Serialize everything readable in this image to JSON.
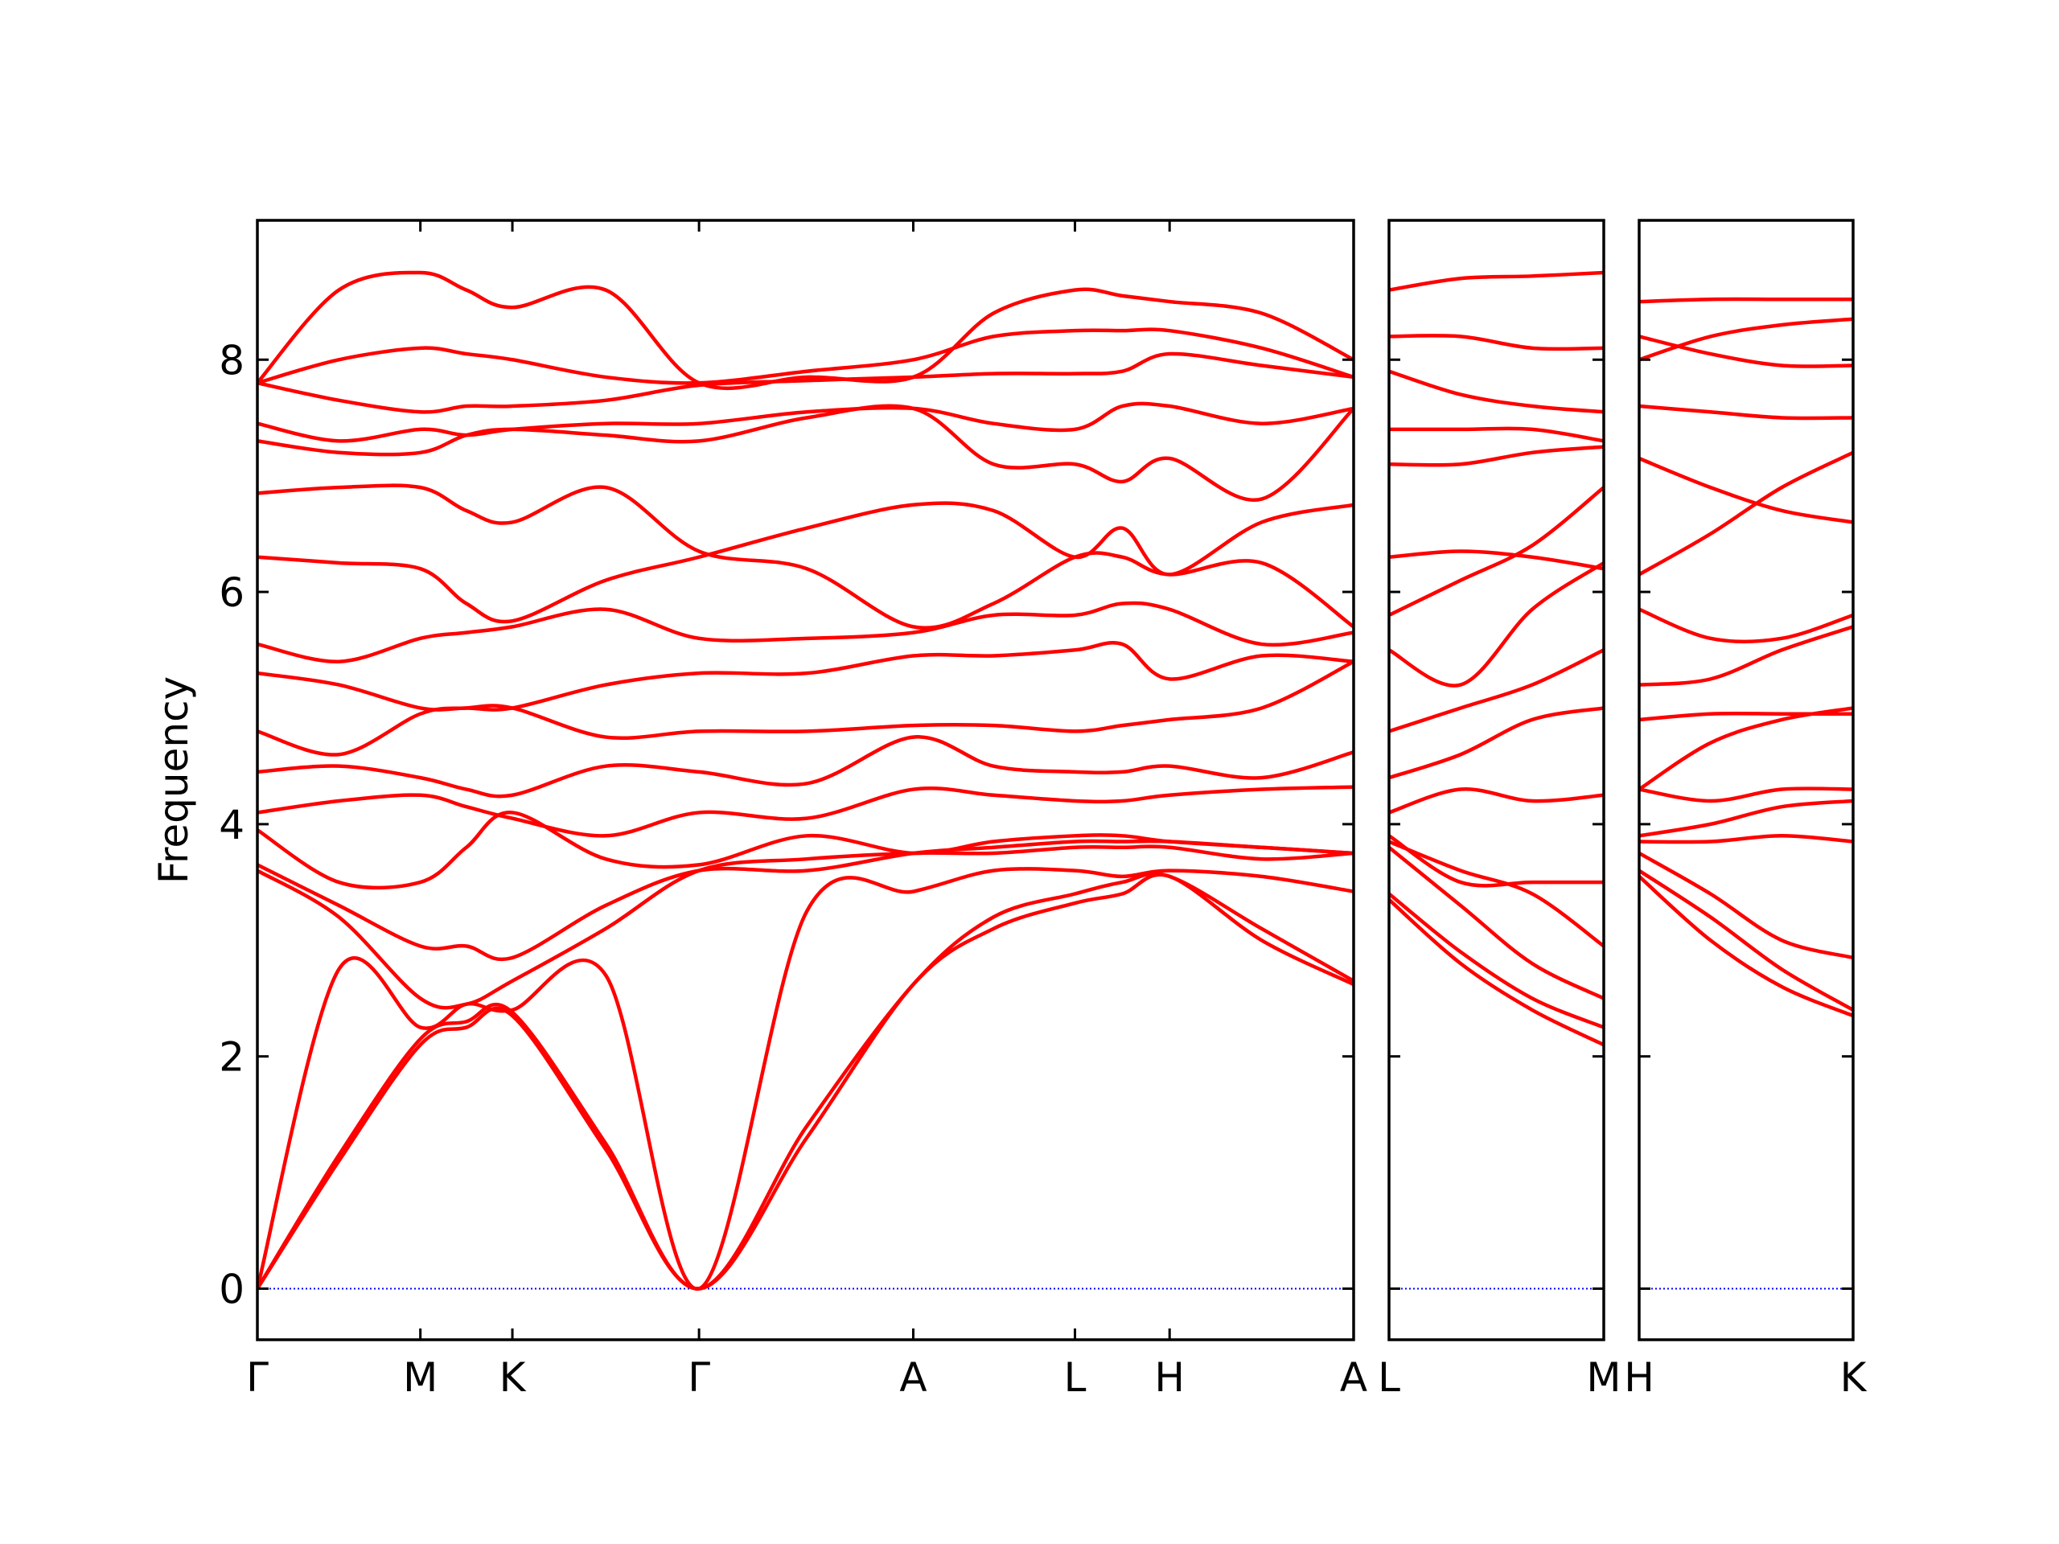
{
  "chart_data": [
    {
      "type": "line",
      "ylabel": "Frequency",
      "color": "#ff0000",
      "hline": 0,
      "hline_color": "#0000ff",
      "xlim": [
        0,
        8.34
      ],
      "ylim": [
        -0.44,
        9.2
      ],
      "yticks": [
        0,
        2,
        4,
        6,
        8
      ],
      "show_ytick_labels": true,
      "xticks": [
        {
          "value": 0,
          "label": "Γ"
        },
        {
          "value": 1.24,
          "label": "M"
        },
        {
          "value": 1.94,
          "label": "K"
        },
        {
          "value": 3.36,
          "label": "Γ"
        },
        {
          "value": 4.99,
          "label": "A"
        },
        {
          "value": 6.22,
          "label": "L"
        },
        {
          "value": 6.94,
          "label": "H"
        },
        {
          "value": 8.34,
          "label": "A"
        }
      ],
      "x": [
        0,
        0.62,
        1.24,
        1.59,
        1.94,
        2.65,
        3.36,
        4.18,
        4.99,
        5.6,
        6.22,
        6.58,
        6.94,
        7.64,
        8.34
      ],
      "series": [
        {
          "values": [
            0,
            1.1,
            2.1,
            2.25,
            2.35,
            1.2,
            0,
            1.3,
            2.62,
            3.1,
            3.32,
            3.4,
            3.55,
            3.0,
            2.62
          ]
        },
        {
          "values": [
            0,
            1.15,
            2.15,
            2.3,
            2.38,
            1.25,
            0,
            1.4,
            2.62,
            3.2,
            3.4,
            3.5,
            3.55,
            3.1,
            2.65
          ]
        },
        {
          "values": [
            0,
            2.75,
            2.25,
            2.45,
            2.4,
            2.7,
            0,
            3.25,
            3.42,
            3.6,
            3.6,
            3.55,
            3.6,
            3.55,
            3.42
          ]
        },
        {
          "values": [
            3.6,
            3.2,
            2.5,
            2.45,
            2.65,
            3.1,
            3.6,
            3.7,
            3.75,
            3.75,
            3.8,
            3.8,
            3.8,
            3.7,
            3.75
          ]
        },
        {
          "values": [
            3.65,
            3.3,
            2.95,
            2.95,
            2.85,
            3.3,
            3.6,
            3.6,
            3.75,
            3.8,
            3.85,
            3.85,
            3.85,
            3.8,
            3.75
          ]
        },
        {
          "values": [
            3.95,
            3.5,
            3.5,
            3.8,
            4.1,
            3.7,
            3.65,
            3.9,
            3.75,
            3.85,
            3.9,
            3.9,
            3.85,
            3.8,
            3.75
          ]
        },
        {
          "values": [
            4.1,
            4.2,
            4.25,
            4.15,
            4.05,
            3.9,
            4.1,
            4.05,
            4.3,
            4.25,
            4.2,
            4.2,
            4.25,
            4.3,
            4.32
          ]
        },
        {
          "values": [
            4.45,
            4.5,
            4.4,
            4.3,
            4.25,
            4.5,
            4.45,
            4.35,
            4.75,
            4.5,
            4.45,
            4.45,
            4.5,
            4.4,
            4.62
          ]
        },
        {
          "values": [
            4.8,
            4.6,
            4.95,
            5.0,
            5.0,
            4.75,
            4.8,
            4.8,
            4.85,
            4.85,
            4.8,
            4.85,
            4.9,
            5.0,
            5.4
          ]
        },
        {
          "values": [
            5.3,
            5.2,
            5.0,
            5.0,
            5.0,
            5.2,
            5.3,
            5.3,
            5.45,
            5.45,
            5.5,
            5.55,
            5.25,
            5.45,
            5.4
          ]
        },
        {
          "values": [
            5.55,
            5.4,
            5.6,
            5.65,
            5.7,
            5.85,
            5.6,
            5.6,
            5.65,
            5.8,
            5.8,
            5.9,
            5.85,
            5.55,
            5.65
          ]
        },
        {
          "values": [
            6.3,
            6.25,
            6.2,
            5.9,
            5.75,
            6.1,
            6.3,
            6.55,
            6.75,
            6.7,
            6.3,
            6.55,
            6.15,
            6.6,
            6.75
          ]
        },
        {
          "values": [
            6.85,
            6.9,
            6.9,
            6.7,
            6.6,
            6.9,
            6.35,
            6.2,
            5.7,
            5.9,
            6.3,
            6.3,
            6.15,
            6.25,
            5.7
          ]
        },
        {
          "values": [
            7.3,
            7.2,
            7.2,
            7.35,
            7.4,
            7.35,
            7.3,
            7.5,
            7.58,
            7.1,
            7.1,
            6.95,
            7.15,
            6.8,
            7.58
          ]
        },
        {
          "values": [
            7.45,
            7.3,
            7.4,
            7.35,
            7.4,
            7.45,
            7.45,
            7.55,
            7.58,
            7.45,
            7.4,
            7.6,
            7.6,
            7.45,
            7.58
          ]
        },
        {
          "values": [
            7.8,
            7.65,
            7.55,
            7.6,
            7.6,
            7.65,
            7.78,
            7.82,
            7.85,
            7.88,
            7.88,
            7.9,
            8.05,
            7.95,
            7.85
          ]
        },
        {
          "values": [
            7.8,
            8.0,
            8.1,
            8.05,
            8.0,
            7.85,
            7.8,
            7.9,
            8.0,
            8.2,
            8.25,
            8.25,
            8.25,
            8.1,
            7.85
          ]
        },
        {
          "values": [
            7.8,
            8.6,
            8.75,
            8.6,
            8.45,
            8.6,
            7.8,
            7.85,
            7.85,
            8.4,
            8.6,
            8.55,
            8.5,
            8.4,
            8.0
          ]
        }
      ]
    },
    {
      "type": "line",
      "color": "#ff0000",
      "hline": 0,
      "hline_color": "#0000ff",
      "xlim": [
        0,
        1.62
      ],
      "ylim": [
        -0.44,
        9.2
      ],
      "yticks": [
        0,
        2,
        4,
        6,
        8
      ],
      "show_ytick_labels": false,
      "xticks": [
        {
          "value": 0,
          "label": "L"
        },
        {
          "value": 1.62,
          "label": "M"
        }
      ],
      "x": [
        0,
        0.54,
        1.08,
        1.62
      ],
      "series": [
        {
          "values": [
            3.35,
            2.8,
            2.4,
            2.1
          ]
        },
        {
          "values": [
            3.4,
            2.9,
            2.5,
            2.25
          ]
        },
        {
          "values": [
            3.8,
            3.3,
            2.8,
            2.5
          ]
        },
        {
          "values": [
            3.85,
            3.6,
            3.4,
            2.95
          ]
        },
        {
          "values": [
            3.9,
            3.5,
            3.5,
            3.5
          ]
        },
        {
          "values": [
            4.1,
            4.3,
            4.2,
            4.25
          ]
        },
        {
          "values": [
            4.4,
            4.6,
            4.9,
            5.0
          ]
        },
        {
          "values": [
            4.8,
            5.0,
            5.2,
            5.5
          ]
        },
        {
          "values": [
            5.5,
            5.2,
            5.85,
            6.25
          ]
        },
        {
          "values": [
            5.8,
            6.1,
            6.4,
            6.9
          ]
        },
        {
          "values": [
            6.3,
            6.35,
            6.3,
            6.2
          ]
        },
        {
          "values": [
            7.1,
            7.1,
            7.2,
            7.25
          ]
        },
        {
          "values": [
            7.4,
            7.4,
            7.4,
            7.3
          ]
        },
        {
          "values": [
            7.9,
            7.7,
            7.6,
            7.55
          ]
        },
        {
          "values": [
            8.2,
            8.2,
            8.1,
            8.1
          ]
        },
        {
          "values": [
            8.6,
            8.7,
            8.72,
            8.75
          ]
        }
      ]
    },
    {
      "type": "line",
      "color": "#ff0000",
      "hline": 0,
      "hline_color": "#0000ff",
      "xlim": [
        0,
        1.62
      ],
      "ylim": [
        -0.44,
        9.2
      ],
      "yticks": [
        0,
        2,
        4,
        6,
        8
      ],
      "show_ytick_labels": false,
      "xticks": [
        {
          "value": 0,
          "label": "H"
        },
        {
          "value": 1.62,
          "label": "K"
        }
      ],
      "x": [
        0,
        0.54,
        1.08,
        1.62
      ],
      "series": [
        {
          "values": [
            3.55,
            3.0,
            2.6,
            2.35
          ]
        },
        {
          "values": [
            3.6,
            3.2,
            2.75,
            2.4
          ]
        },
        {
          "values": [
            3.75,
            3.4,
            3.0,
            2.85
          ]
        },
        {
          "values": [
            3.85,
            3.85,
            3.9,
            3.85
          ]
        },
        {
          "values": [
            3.9,
            4.0,
            4.15,
            4.2
          ]
        },
        {
          "values": [
            4.3,
            4.2,
            4.3,
            4.3
          ]
        },
        {
          "values": [
            4.3,
            4.7,
            4.9,
            5.0
          ]
        },
        {
          "values": [
            4.9,
            4.95,
            4.95,
            4.95
          ]
        },
        {
          "values": [
            5.2,
            5.25,
            5.5,
            5.7
          ]
        },
        {
          "values": [
            5.85,
            5.6,
            5.6,
            5.8
          ]
        },
        {
          "values": [
            6.15,
            6.5,
            6.9,
            7.2
          ]
        },
        {
          "values": [
            7.15,
            6.9,
            6.7,
            6.6
          ]
        },
        {
          "values": [
            7.6,
            7.55,
            7.5,
            7.5
          ]
        },
        {
          "values": [
            8.0,
            8.2,
            8.3,
            8.35
          ]
        },
        {
          "values": [
            8.2,
            8.05,
            7.95,
            7.95
          ]
        },
        {
          "values": [
            8.5,
            8.52,
            8.52,
            8.52
          ]
        }
      ]
    }
  ]
}
